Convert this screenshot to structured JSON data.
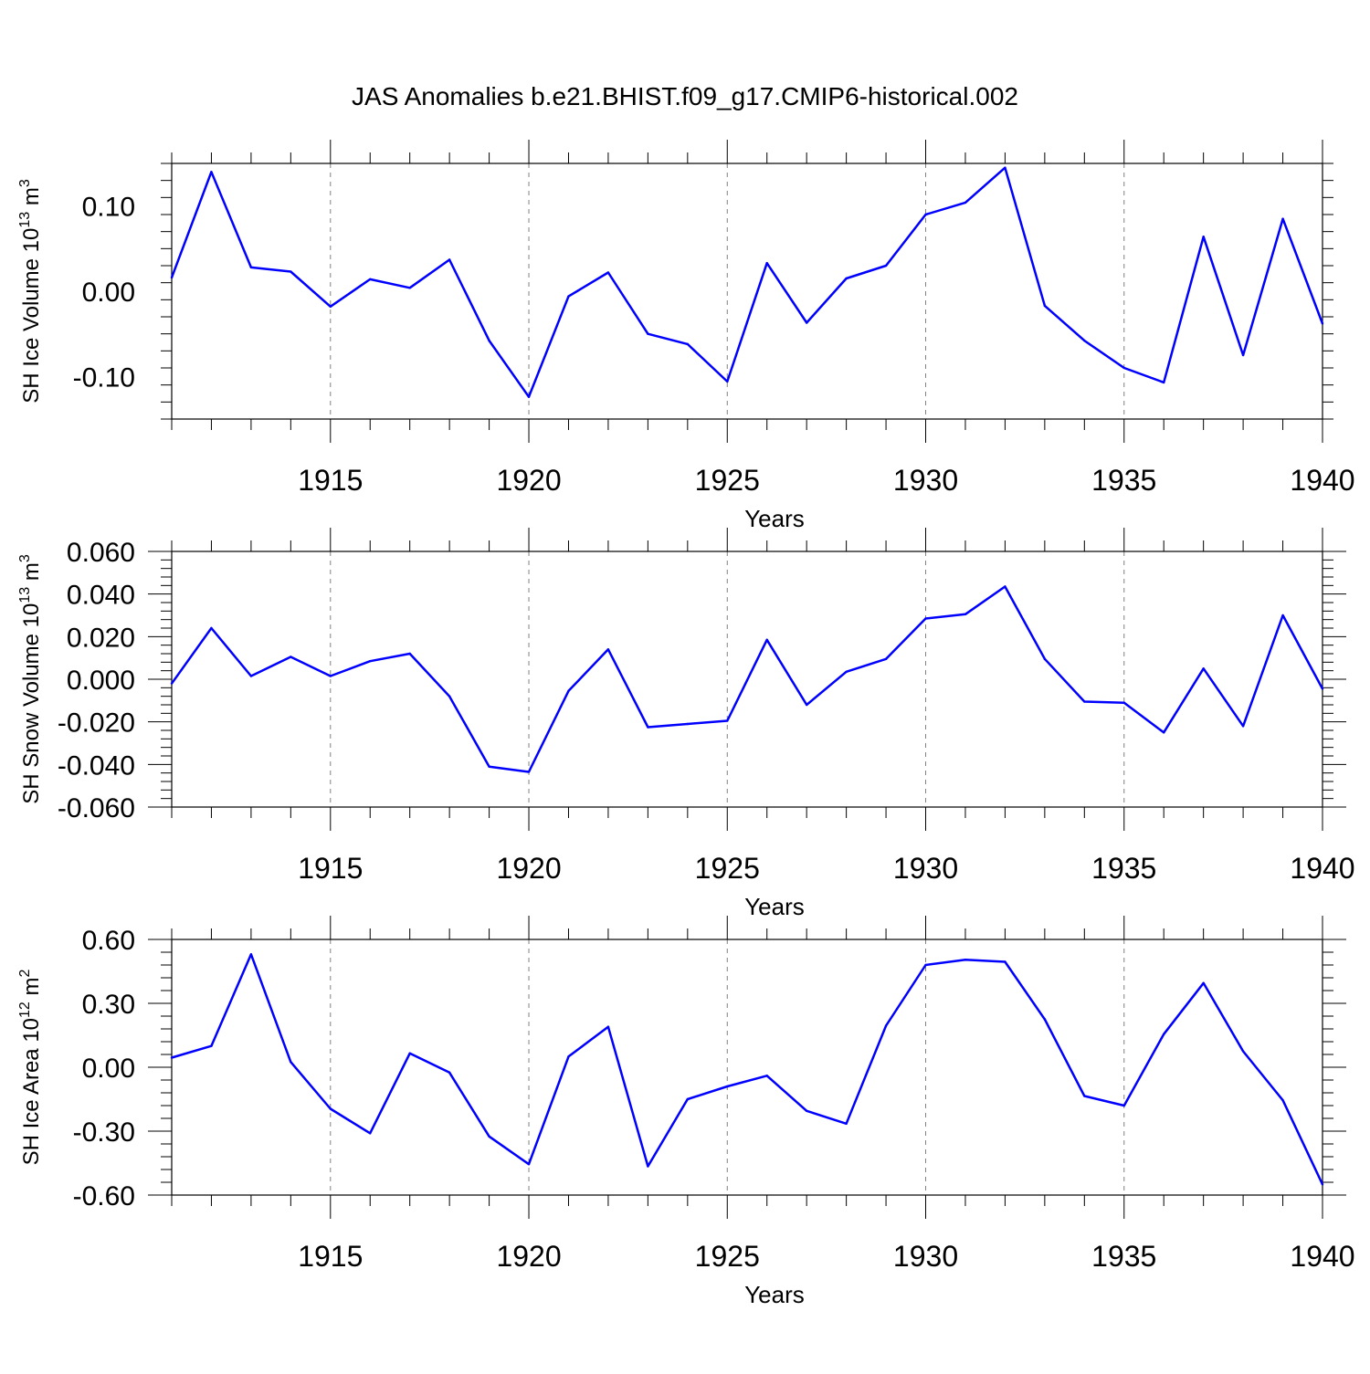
{
  "chart_data": {
    "title": "JAS Anomalies b.e21.BHIST.f09_g17.CMIP6-historical.002",
    "panels": [
      {
        "type": "line",
        "ylabel": "SH Ice Volume 10",
        "ylabel_exp": "13",
        "ylabel_unit": " m",
        "ylabel_unit_exp": "3",
        "xlabel": "Years",
        "xlim": [
          1911,
          1940
        ],
        "ylim": [
          -0.15,
          0.15
        ],
        "yticks": [
          -0.1,
          0.0,
          0.1
        ],
        "ytick_labels": [
          "-0.10",
          "0.00",
          "0.10"
        ],
        "xticks": [
          1915,
          1920,
          1925,
          1930,
          1935,
          1940
        ],
        "xtick_labels": [
          "1915",
          "1920",
          "1925",
          "1930",
          "1935",
          "1940"
        ],
        "grid": "vertical dashed at major x ticks",
        "color": "#0000ff",
        "x": [
          1911,
          1912,
          1913,
          1914,
          1915,
          1916,
          1917,
          1918,
          1919,
          1920,
          1921,
          1922,
          1923,
          1924,
          1925,
          1926,
          1927,
          1928,
          1929,
          1930,
          1931,
          1932,
          1933,
          1934,
          1935,
          1936,
          1937,
          1938,
          1939,
          1940
        ],
        "values": [
          0.016,
          0.14,
          0.028,
          0.023,
          -0.018,
          0.014,
          0.004,
          0.037,
          -0.058,
          -0.124,
          -0.006,
          0.022,
          -0.05,
          -0.062,
          -0.106,
          0.033,
          -0.037,
          0.015,
          0.03,
          0.09,
          0.104,
          0.145,
          -0.017,
          -0.058,
          -0.09,
          -0.107,
          0.064,
          -0.075,
          0.085,
          -0.038
        ]
      },
      {
        "type": "line",
        "ylabel": "SH Snow Volume 10",
        "ylabel_exp": "13",
        "ylabel_unit": " m",
        "ylabel_unit_exp": "3",
        "xlabel": "Years",
        "xlim": [
          1911,
          1940
        ],
        "ylim": [
          -0.06,
          0.06
        ],
        "yticks": [
          -0.06,
          -0.04,
          -0.02,
          0.0,
          0.02,
          0.04,
          0.06
        ],
        "ytick_labels": [
          "-0.060",
          "-0.040",
          "-0.020",
          "0.000",
          "0.020",
          "0.040",
          "0.060"
        ],
        "xticks": [
          1915,
          1920,
          1925,
          1930,
          1935,
          1940
        ],
        "xtick_labels": [
          "1915",
          "1920",
          "1925",
          "1930",
          "1935",
          "1940"
        ],
        "grid": "vertical dashed at major x ticks",
        "color": "#0000ff",
        "x": [
          1911,
          1912,
          1913,
          1914,
          1915,
          1916,
          1917,
          1918,
          1919,
          1920,
          1921,
          1922,
          1923,
          1924,
          1925,
          1926,
          1927,
          1928,
          1929,
          1930,
          1931,
          1932,
          1933,
          1934,
          1935,
          1936,
          1937,
          1938,
          1939,
          1940
        ],
        "values": [
          -0.002,
          0.024,
          0.0015,
          0.0105,
          0.0015,
          0.0085,
          0.012,
          -0.008,
          -0.041,
          -0.0435,
          -0.0055,
          0.014,
          -0.0225,
          -0.021,
          -0.0195,
          0.0185,
          -0.012,
          0.0035,
          0.0095,
          0.0285,
          0.0305,
          0.0435,
          0.0095,
          -0.0105,
          -0.011,
          -0.025,
          0.005,
          -0.022,
          0.03,
          -0.0045
        ]
      },
      {
        "type": "line",
        "ylabel": "SH Ice Area 10",
        "ylabel_exp": "12",
        "ylabel_unit": " m",
        "ylabel_unit_exp": "2",
        "xlabel": "Years",
        "xlim": [
          1911,
          1940
        ],
        "ylim": [
          -0.6,
          0.6
        ],
        "yticks": [
          -0.6,
          -0.3,
          0.0,
          0.3,
          0.6
        ],
        "ytick_labels": [
          "-0.60",
          "-0.30",
          "0.00",
          "0.30",
          "0.60"
        ],
        "xticks": [
          1915,
          1920,
          1925,
          1930,
          1935,
          1940
        ],
        "xtick_labels": [
          "1915",
          "1920",
          "1925",
          "1930",
          "1935",
          "1940"
        ],
        "grid": "vertical dashed at major x ticks",
        "color": "#0000ff",
        "x": [
          1911,
          1912,
          1913,
          1914,
          1915,
          1916,
          1917,
          1918,
          1919,
          1920,
          1921,
          1922,
          1923,
          1924,
          1925,
          1926,
          1927,
          1928,
          1929,
          1930,
          1931,
          1932,
          1933,
          1934,
          1935,
          1936,
          1937,
          1938,
          1939,
          1940
        ],
        "values": [
          0.045,
          0.1,
          0.53,
          0.025,
          -0.195,
          -0.31,
          0.065,
          -0.025,
          -0.325,
          -0.455,
          0.05,
          0.19,
          -0.465,
          -0.15,
          -0.09,
          -0.04,
          -0.205,
          -0.265,
          0.195,
          0.48,
          0.505,
          0.495,
          0.225,
          -0.135,
          -0.18,
          0.155,
          0.395,
          0.075,
          -0.155,
          -0.55
        ]
      }
    ]
  }
}
